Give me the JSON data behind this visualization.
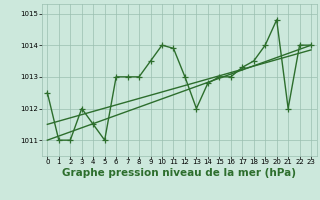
{
  "x": [
    0,
    1,
    2,
    3,
    4,
    5,
    6,
    7,
    8,
    9,
    10,
    11,
    12,
    13,
    14,
    15,
    16,
    17,
    18,
    19,
    20,
    21,
    22,
    23
  ],
  "y_main": [
    1012.5,
    1011.0,
    1011.0,
    1012.0,
    1011.5,
    1011.0,
    1013.0,
    1013.0,
    1013.0,
    1013.5,
    1014.0,
    1013.9,
    1013.0,
    1012.0,
    1012.8,
    1013.0,
    1013.0,
    1013.3,
    1013.5,
    1014.0,
    1014.8,
    1012.0,
    1014.0,
    1014.0
  ],
  "y_line1_x": [
    0,
    23
  ],
  "y_line1_y": [
    1011.0,
    1014.0
  ],
  "y_line2_x": [
    0,
    23
  ],
  "y_line2_y": [
    1011.5,
    1013.85
  ],
  "ylim": [
    1010.5,
    1015.3
  ],
  "xlim": [
    -0.5,
    23.5
  ],
  "yticks": [
    1011,
    1012,
    1013,
    1014,
    1015
  ],
  "xticks": [
    0,
    1,
    2,
    3,
    4,
    5,
    6,
    7,
    8,
    9,
    10,
    11,
    12,
    13,
    14,
    15,
    16,
    17,
    18,
    19,
    20,
    21,
    22,
    23
  ],
  "xlabel": "Graphe pression niveau de la mer (hPa)",
  "line_color": "#2d6e2d",
  "bg_color": "#cce8dc",
  "grid_color": "#9abfb0",
  "marker": "+",
  "markersize": 4,
  "linewidth": 1.0,
  "xlabel_fontsize": 7.5,
  "tick_fontsize": 5
}
